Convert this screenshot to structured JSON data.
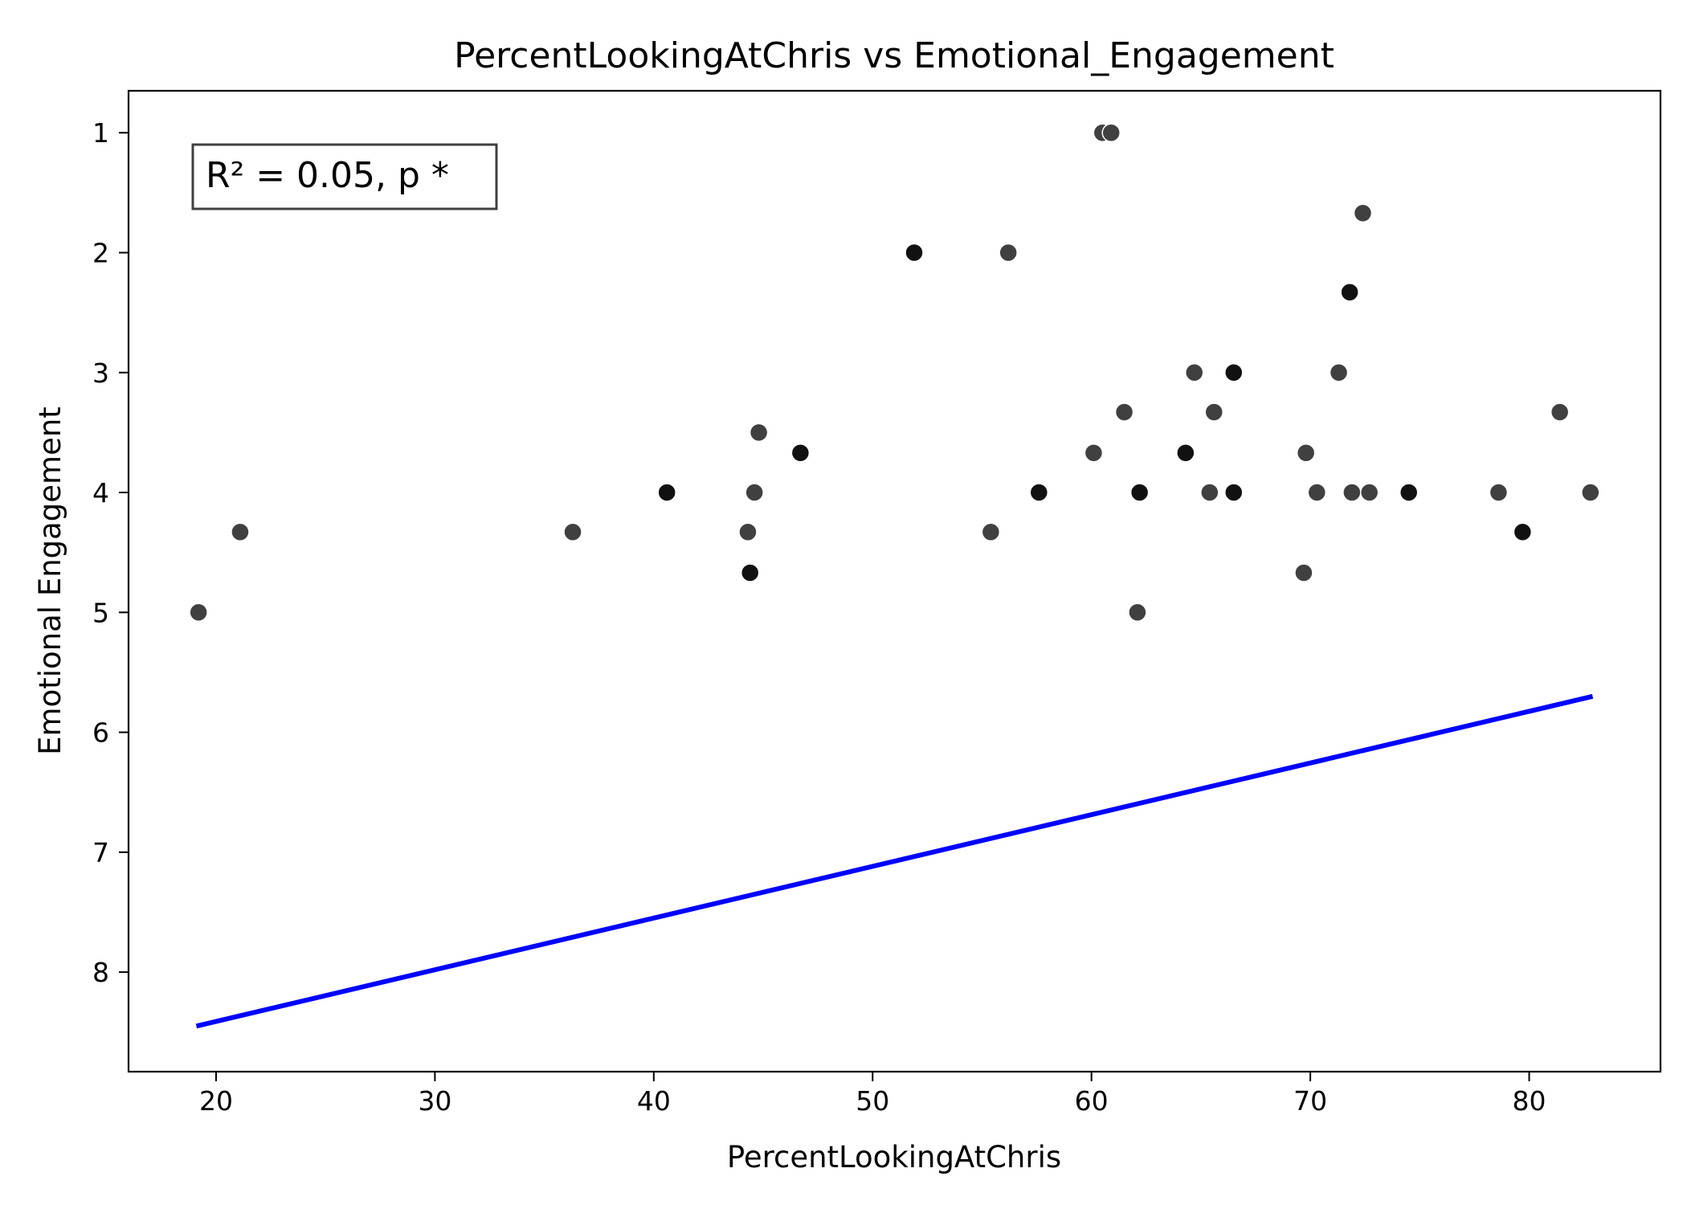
{
  "chart_data": {
    "type": "scatter",
    "title": "PercentLookingAtChris vs Emotional_Engagement",
    "xlabel": "PercentLookingAtChris",
    "ylabel": "Emotional Engagement",
    "xlim": [
      16,
      86
    ],
    "ylim": [
      8.83,
      0.65
    ],
    "y_inverted": true,
    "xticks": [
      20,
      30,
      40,
      50,
      60,
      70,
      80
    ],
    "yticks": [
      1,
      2,
      3,
      4,
      5,
      6,
      7,
      8
    ],
    "grid": false,
    "annotation": "R² = 0.05, p *",
    "point_color": "#404040",
    "line_color": "#0000ff",
    "points": [
      {
        "x": 19.2,
        "y": 5.0
      },
      {
        "x": 21.1,
        "y": 4.33
      },
      {
        "x": 36.3,
        "y": 4.33
      },
      {
        "x": 40.6,
        "y": 4.0,
        "dark": true
      },
      {
        "x": 44.3,
        "y": 4.33
      },
      {
        "x": 44.4,
        "y": 4.67,
        "dark": true
      },
      {
        "x": 44.6,
        "y": 4.0
      },
      {
        "x": 44.8,
        "y": 3.5
      },
      {
        "x": 46.7,
        "y": 3.67,
        "dark": true
      },
      {
        "x": 51.9,
        "y": 2.0,
        "dark": true
      },
      {
        "x": 55.4,
        "y": 4.33
      },
      {
        "x": 56.2,
        "y": 2.0
      },
      {
        "x": 57.6,
        "y": 4.0,
        "dark": true
      },
      {
        "x": 60.1,
        "y": 3.67
      },
      {
        "x": 60.5,
        "y": 1.0
      },
      {
        "x": 60.9,
        "y": 1.0
      },
      {
        "x": 61.5,
        "y": 3.33
      },
      {
        "x": 62.1,
        "y": 5.0
      },
      {
        "x": 62.2,
        "y": 4.0,
        "dark": true
      },
      {
        "x": 64.3,
        "y": 3.67,
        "dark": true
      },
      {
        "x": 64.7,
        "y": 3.0
      },
      {
        "x": 65.4,
        "y": 4.0
      },
      {
        "x": 65.6,
        "y": 3.33
      },
      {
        "x": 66.5,
        "y": 3.0,
        "dark": true
      },
      {
        "x": 66.5,
        "y": 4.0,
        "dark": true
      },
      {
        "x": 69.7,
        "y": 4.67
      },
      {
        "x": 69.8,
        "y": 3.67
      },
      {
        "x": 70.3,
        "y": 4.0
      },
      {
        "x": 71.3,
        "y": 3.0
      },
      {
        "x": 71.8,
        "y": 2.33,
        "dark": true
      },
      {
        "x": 71.9,
        "y": 4.0
      },
      {
        "x": 72.4,
        "y": 1.67
      },
      {
        "x": 72.7,
        "y": 4.0
      },
      {
        "x": 74.5,
        "y": 4.0,
        "dark": true
      },
      {
        "x": 78.6,
        "y": 4.0
      },
      {
        "x": 79.7,
        "y": 4.33,
        "dark": true
      },
      {
        "x": 81.4,
        "y": 3.33
      },
      {
        "x": 82.8,
        "y": 4.0
      }
    ],
    "fit_line": {
      "x": [
        19.1,
        82.9
      ],
      "y": [
        8.45,
        5.7
      ]
    }
  }
}
